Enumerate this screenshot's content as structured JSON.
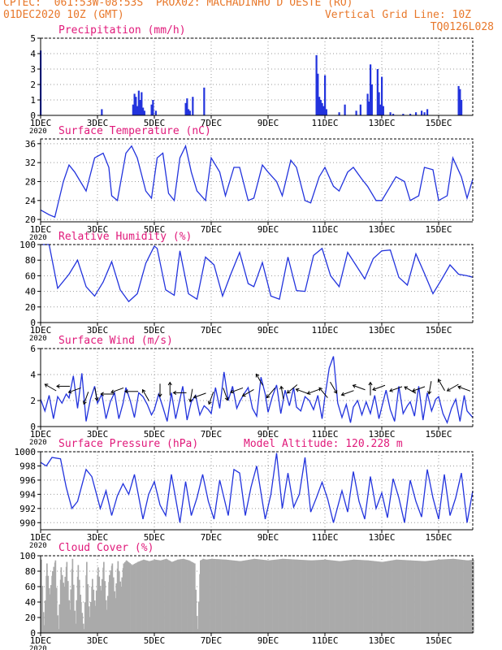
{
  "header": {
    "line1_left": "CPTEC:  061:53W-08:53S  PROX02: MACHADINHO D OESTE (RO)",
    "line2_left": "01DEC2020 10Z (GMT)",
    "line2_right": "Vertical Grid Line: 10Z",
    "line3_right": "TQ0126L028"
  },
  "colors": {
    "header": "#e8782b",
    "panel_title": "#e0197a",
    "series": "#2233dd",
    "cloud": "#aaaaaa",
    "grid": "#999999"
  },
  "x_axis": {
    "start_day": 1,
    "end_day": 16.2,
    "tick_labels": [
      "1DEC",
      "3DEC",
      "5DEC",
      "7DEC",
      "9DEC",
      "11DEC",
      "13DEC",
      "15DEC"
    ],
    "tick_days": [
      1,
      3,
      5,
      7,
      9,
      11,
      13,
      15
    ],
    "year_label": "2020"
  },
  "chart_data": [
    {
      "id": "precip",
      "type": "bar",
      "title": "Precipitation (mm/h)",
      "ylim": [
        0,
        5
      ],
      "yticks": [
        0,
        1,
        2,
        3,
        4,
        5
      ],
      "x": [
        1.0,
        3.15,
        4.25,
        4.3,
        4.35,
        4.4,
        4.45,
        4.5,
        4.55,
        4.6,
        4.65,
        4.9,
        4.95,
        5.05,
        6.1,
        6.15,
        6.2,
        6.25,
        6.35,
        6.75,
        10.7,
        10.75,
        10.8,
        10.85,
        10.9,
        10.95,
        11.0,
        11.05,
        11.5,
        11.7,
        12.1,
        12.25,
        12.5,
        12.55,
        12.6,
        12.65,
        12.85,
        12.9,
        12.95,
        13.0,
        13.05,
        13.3,
        13.4,
        13.75,
        14.0,
        14.2,
        14.4,
        14.5,
        14.6,
        15.7,
        15.75,
        15.8
      ],
      "values": [
        4.2,
        0.4,
        0.7,
        1.4,
        1.2,
        0.6,
        1.6,
        1.0,
        1.5,
        0.5,
        0.3,
        0.7,
        1.0,
        0.3,
        0.8,
        1.1,
        0.4,
        0.3,
        1.2,
        1.8,
        3.9,
        2.7,
        1.2,
        1.0,
        0.8,
        0.6,
        2.6,
        0.4,
        0.2,
        0.7,
        0.3,
        0.7,
        1.4,
        0.9,
        3.3,
        2.0,
        3.0,
        1.5,
        0.7,
        2.5,
        0.6,
        0.2,
        0.1,
        0.1,
        0.1,
        0.2,
        0.3,
        0.2,
        0.4,
        1.9,
        1.7,
        1.0
      ]
    },
    {
      "id": "temperature",
      "type": "line",
      "title": "Surface Temperature (nC)",
      "ylim": [
        19.5,
        37
      ],
      "yticks": [
        20,
        24,
        28,
        32,
        36
      ],
      "x": [
        1.0,
        1.3,
        1.5,
        1.6,
        1.8,
        2.0,
        2.2,
        2.4,
        2.6,
        2.9,
        3.2,
        3.4,
        3.5,
        3.7,
        4.0,
        4.2,
        4.4,
        4.7,
        4.9,
        5.1,
        5.3,
        5.5,
        5.7,
        5.9,
        6.1,
        6.3,
        6.5,
        6.8,
        7.0,
        7.3,
        7.5,
        7.8,
        8.0,
        8.3,
        8.5,
        8.8,
        9.0,
        9.3,
        9.5,
        9.8,
        10.0,
        10.3,
        10.5,
        10.8,
        11.0,
        11.3,
        11.5,
        11.8,
        12.0,
        12.3,
        12.5,
        12.8,
        13.0,
        13.3,
        13.5,
        13.8,
        14.0,
        14.3,
        14.5,
        14.8,
        15.0,
        15.3,
        15.5,
        15.8,
        16.0,
        16.2
      ],
      "values": [
        22,
        21,
        20.5,
        23,
        28,
        31.5,
        30,
        28,
        26,
        33,
        34,
        31,
        25,
        24,
        34,
        35.5,
        33,
        26,
        24.5,
        33,
        34,
        25.5,
        24,
        33,
        35.5,
        30,
        26,
        24,
        33,
        30,
        25,
        31,
        31,
        24,
        24.5,
        31.5,
        30,
        28,
        25,
        32.5,
        31,
        24,
        23.5,
        29,
        31,
        27,
        26,
        30,
        31,
        28.5,
        27,
        24,
        24,
        27,
        29,
        28,
        24,
        25,
        31,
        30.5,
        24,
        25,
        33,
        29,
        24.5,
        28.5
      ]
    },
    {
      "id": "humidity",
      "type": "line",
      "title": "Relative Humidity (%)",
      "ylim": [
        0,
        100
      ],
      "yticks": [
        0,
        20,
        40,
        60,
        80,
        100
      ],
      "x": [
        1.0,
        1.3,
        1.6,
        2.0,
        2.3,
        2.6,
        2.9,
        3.2,
        3.5,
        3.8,
        4.1,
        4.4,
        4.7,
        5.0,
        5.1,
        5.4,
        5.7,
        5.9,
        6.2,
        6.5,
        6.8,
        7.1,
        7.4,
        7.7,
        8.0,
        8.3,
        8.5,
        8.8,
        9.1,
        9.4,
        9.7,
        10.0,
        10.3,
        10.6,
        10.9,
        11.2,
        11.5,
        11.8,
        12.1,
        12.4,
        12.7,
        13.0,
        13.3,
        13.6,
        13.9,
        14.2,
        14.5,
        14.8,
        15.1,
        15.4,
        15.7,
        16.0,
        16.2
      ],
      "values": [
        100,
        100,
        44,
        62,
        80,
        46,
        34,
        52,
        78,
        42,
        27,
        37,
        76,
        98,
        95,
        42,
        35,
        92,
        37,
        30,
        84,
        74,
        34,
        63,
        90,
        50,
        46,
        77,
        34,
        30,
        84,
        41,
        40,
        86,
        95,
        60,
        46,
        90,
        73,
        56,
        82,
        92,
        93,
        58,
        48,
        88,
        63,
        37,
        55,
        74,
        62,
        60,
        58
      ]
    },
    {
      "id": "wind",
      "type": "line",
      "title": "Surface Wind (m/s)",
      "ylim": [
        0,
        6
      ],
      "yticks": [
        0,
        2,
        4,
        6
      ],
      "x": [
        1.0,
        1.15,
        1.3,
        1.45,
        1.6,
        1.75,
        1.9,
        2.0,
        2.15,
        2.3,
        2.45,
        2.6,
        2.75,
        2.9,
        3.0,
        3.15,
        3.3,
        3.45,
        3.6,
        3.75,
        3.9,
        4.0,
        4.15,
        4.3,
        4.45,
        4.6,
        4.75,
        4.9,
        5.0,
        5.15,
        5.3,
        5.45,
        5.6,
        5.75,
        5.9,
        6.0,
        6.15,
        6.3,
        6.45,
        6.6,
        6.75,
        6.9,
        7.0,
        7.15,
        7.3,
        7.45,
        7.6,
        7.75,
        7.9,
        8.0,
        8.15,
        8.3,
        8.45,
        8.6,
        8.75,
        8.9,
        9.0,
        9.15,
        9.3,
        9.45,
        9.6,
        9.75,
        9.9,
        10.0,
        10.15,
        10.3,
        10.45,
        10.6,
        10.75,
        10.9,
        11.0,
        11.15,
        11.3,
        11.45,
        11.6,
        11.75,
        11.9,
        12.0,
        12.15,
        12.3,
        12.45,
        12.6,
        12.75,
        12.9,
        13.0,
        13.15,
        13.3,
        13.45,
        13.6,
        13.75,
        13.9,
        14.0,
        14.15,
        14.3,
        14.45,
        14.6,
        14.75,
        14.9,
        15.0,
        15.15,
        15.3,
        15.45,
        15.6,
        15.75,
        15.9,
        16.0,
        16.2
      ],
      "values": [
        2.1,
        1.2,
        2.4,
        0.6,
        2.3,
        1.8,
        2.5,
        2.2,
        3.9,
        1.4,
        4.1,
        0.4,
        2.1,
        3.1,
        1.8,
        2.5,
        0.6,
        1.9,
        2.6,
        0.6,
        1.8,
        3.0,
        2.0,
        0.7,
        2.6,
        2.3,
        1.7,
        0.9,
        1.3,
        2.5,
        1.5,
        0.4,
        2.6,
        0.6,
        2.1,
        3.1,
        0.5,
        1.9,
        2.4,
        0.9,
        1.6,
        1.3,
        1.0,
        3.0,
        1.4,
        4.2,
        2.0,
        3.1,
        1.4,
        1.9,
        2.5,
        3.0,
        1.4,
        0.8,
        3.8,
        2.5,
        1.1,
        2.3,
        3.2,
        1.0,
        2.8,
        1.6,
        3.0,
        1.5,
        1.2,
        2.3,
        2.0,
        1.3,
        2.4,
        0.6,
        2.3,
        4.5,
        5.4,
        1.8,
        0.7,
        1.7,
        0.3,
        1.5,
        2.0,
        0.9,
        1.9,
        1.0,
        2.4,
        0.6,
        1.5,
        2.8,
        1.3,
        0.4,
        3.1,
        1.0,
        1.6,
        1.9,
        0.8,
        3.1,
        0.5,
        2.6,
        1.2,
        2.1,
        2.3,
        1.0,
        0.3,
        1.4,
        2.1,
        0.4,
        2.4,
        1.2,
        0.7
      ]
    },
    {
      "id": "pressure",
      "type": "line",
      "title": "Surface Pressure (hPa)",
      "ylim": [
        989,
        1000
      ],
      "yticks": [
        990,
        992,
        994,
        996,
        998,
        1000
      ],
      "x": [
        1.0,
        1.2,
        1.4,
        1.7,
        1.9,
        2.1,
        2.3,
        2.6,
        2.8,
        3.1,
        3.3,
        3.5,
        3.7,
        3.9,
        4.1,
        4.3,
        4.6,
        4.8,
        5.0,
        5.2,
        5.4,
        5.6,
        5.9,
        6.1,
        6.3,
        6.5,
        6.7,
        6.9,
        7.1,
        7.3,
        7.6,
        7.8,
        8.0,
        8.2,
        8.4,
        8.6,
        8.9,
        9.1,
        9.3,
        9.5,
        9.7,
        9.9,
        10.1,
        10.3,
        10.5,
        10.7,
        10.9,
        11.1,
        11.3,
        11.6,
        11.8,
        12.0,
        12.2,
        12.4,
        12.6,
        12.8,
        13.0,
        13.2,
        13.4,
        13.6,
        13.8,
        14.0,
        14.2,
        14.4,
        14.6,
        14.8,
        15.0,
        15.2,
        15.4,
        15.6,
        15.8,
        16.0,
        16.2
      ],
      "values": [
        998.5,
        998,
        999.2,
        999,
        995,
        992,
        993,
        997.5,
        996.5,
        992,
        994.5,
        991,
        993.8,
        995.5,
        994,
        996.8,
        990.5,
        994,
        995.8,
        992.5,
        991,
        996.8,
        990,
        995.8,
        991,
        993.5,
        996.8,
        993,
        990.5,
        996,
        991,
        997.5,
        997,
        991,
        995,
        998,
        990.5,
        994,
        999.8,
        992,
        997,
        992.2,
        994,
        999.2,
        991.5,
        993.5,
        995.7,
        993.3,
        990,
        994.5,
        991.5,
        997.2,
        993,
        990.5,
        996.5,
        992,
        994.2,
        990.7,
        996.2,
        993.5,
        990,
        996,
        993,
        990.8,
        997.5,
        993.5,
        990.5,
        996.8,
        991,
        993.5,
        997,
        990,
        994.5
      ]
    },
    {
      "id": "cloud",
      "type": "area",
      "title": "Cloud Cover (%)",
      "ylim": [
        0,
        100
      ],
      "yticks": [
        0,
        20,
        40,
        60,
        80,
        100
      ],
      "x": [
        1.0,
        1.1,
        1.2,
        1.3,
        1.4,
        1.5,
        1.6,
        1.7,
        1.8,
        1.9,
        2.0,
        2.1,
        2.2,
        2.3,
        2.4,
        2.5,
        2.6,
        2.7,
        2.8,
        2.9,
        3.0,
        3.1,
        3.2,
        3.3,
        3.4,
        3.5,
        3.6,
        3.7,
        3.8,
        3.9,
        4.0,
        4.2,
        4.4,
        4.6,
        4.8,
        5.0,
        5.2,
        5.4,
        5.6,
        5.8,
        6.0,
        6.2,
        6.4,
        6.5,
        6.6,
        6.7,
        6.8,
        7.0,
        7.5,
        8.0,
        8.5,
        9.0,
        9.5,
        10.0,
        10.5,
        11.0,
        11.5,
        12.0,
        12.5,
        13.0,
        13.5,
        14.0,
        14.5,
        15.0,
        15.5,
        16.0,
        16.2
      ],
      "values": [
        95,
        10,
        90,
        50,
        80,
        94,
        5,
        85,
        60,
        92,
        30,
        96,
        12,
        88,
        40,
        5,
        92,
        20,
        70,
        35,
        85,
        55,
        92,
        30,
        75,
        90,
        45,
        93,
        60,
        90,
        94,
        88,
        92,
        95,
        93,
        95,
        94,
        96,
        92,
        95,
        96,
        94,
        90,
        5,
        94,
        96,
        95,
        96,
        95,
        93,
        96,
        94,
        96,
        95,
        94,
        95,
        93,
        95,
        94,
        92,
        95,
        94,
        93,
        95,
        96,
        94,
        95
      ]
    }
  ],
  "panels_extra": {
    "altitude_label": "Model Altitude: 120.228 m"
  }
}
